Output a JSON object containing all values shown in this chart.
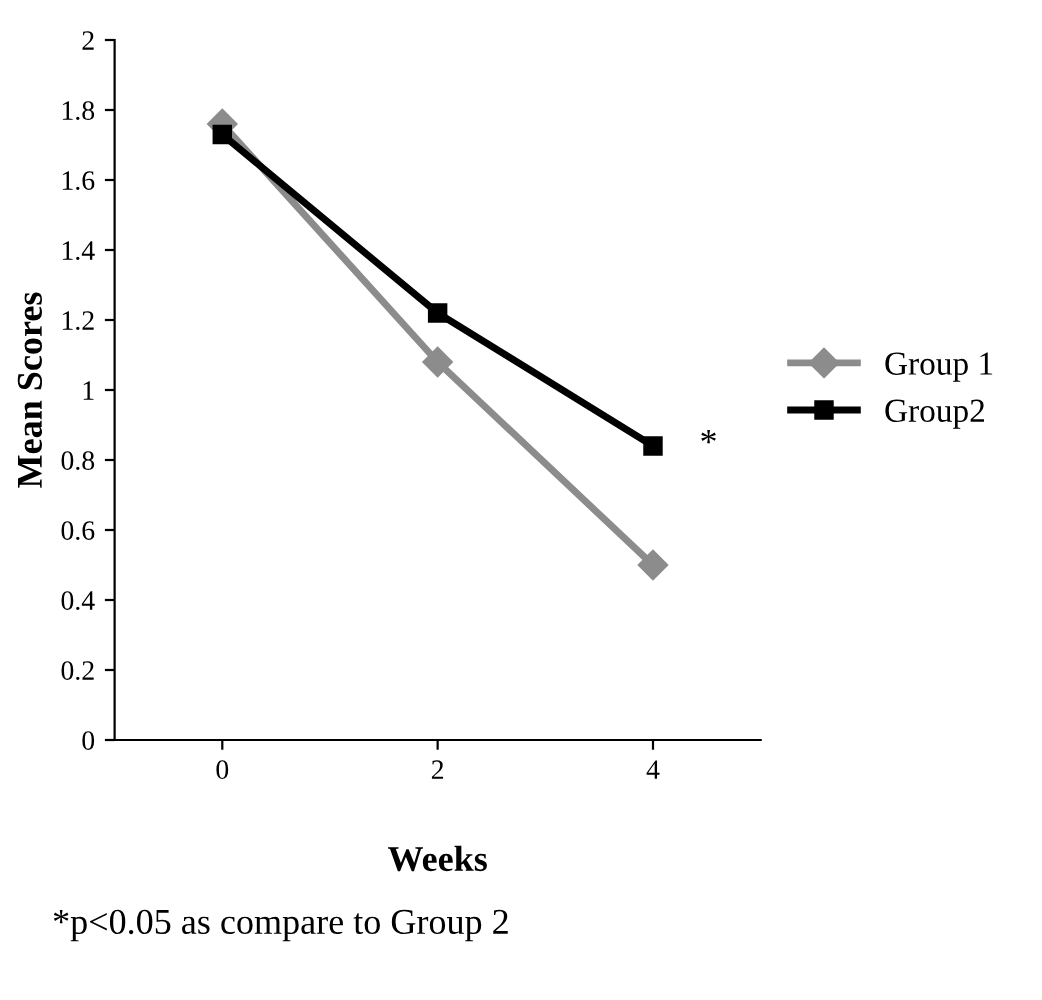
{
  "chart_data": {
    "type": "line",
    "xlabel": "Weeks",
    "ylabel": "Mean Scores",
    "categories": [
      "0",
      "2",
      "4"
    ],
    "series": [
      {
        "name": "Group 1",
        "color": "#8c8c8c",
        "marker": "diamond",
        "values": [
          1.76,
          1.08,
          0.5
        ]
      },
      {
        "name": "Group2",
        "color": "#000000",
        "marker": "square",
        "values": [
          1.73,
          1.22,
          0.84
        ]
      }
    ],
    "ylim": [
      0,
      2
    ],
    "yticks": [
      0,
      0.2,
      0.4,
      0.6,
      0.8,
      1,
      1.2,
      1.4,
      1.6,
      1.8,
      2
    ],
    "grid": false,
    "legend": "right",
    "line_style": "solid",
    "annotations": [
      "*",
      "*p<0.05 as compare to Group 2"
    ]
  }
}
